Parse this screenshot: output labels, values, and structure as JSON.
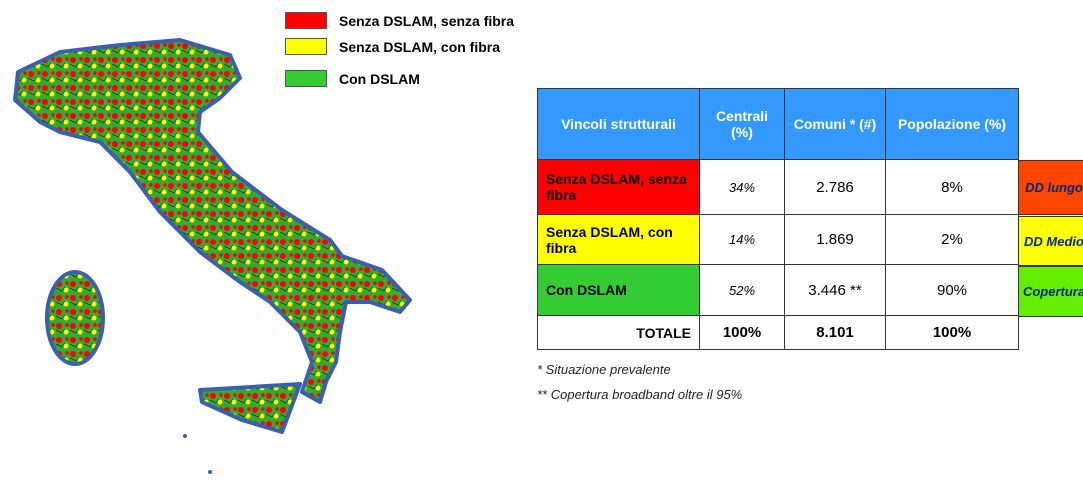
{
  "legend": [
    {
      "label": "Senza DSLAM, senza fibra",
      "color": "#ff0000"
    },
    {
      "label": "Senza DSLAM, con fibra",
      "color": "#ffff00"
    },
    {
      "label": "Con DSLAM",
      "color": "#33cc33"
    }
  ],
  "table": {
    "header": [
      "Vincoli strutturali",
      "Centrali (%)",
      "Comuni * (#)",
      "Popolazione (%)"
    ],
    "header_color": "#3399ff",
    "rows": [
      {
        "cells": [
          "Senza DSLAM, senza fibra",
          "34%",
          "2.786",
          "8%"
        ],
        "color": "#ff0000"
      },
      {
        "cells": [
          "Senza DSLAM, con fibra",
          "14%",
          "1.869",
          "2%"
        ],
        "color": "#ffff00"
      },
      {
        "cells": [
          "Con DSLAM",
          "52%",
          "3.446 **",
          "90%"
        ],
        "color": "#33cc33"
      },
      {
        "cells": [
          "TOTALE",
          "100%",
          "8.101",
          "100%"
        ],
        "color": "#ffffff"
      }
    ],
    "side_labels": [
      {
        "label": "DD lungo",
        "color": "#ff4400"
      },
      {
        "label": "DD Medio",
        "color": "#ffff00"
      },
      {
        "label": "Copertura",
        "color": "#66ee00"
      }
    ]
  },
  "footnotes": [
    "* Situazione prevalente",
    "** Copertura broadband oltre il 95%"
  ]
}
